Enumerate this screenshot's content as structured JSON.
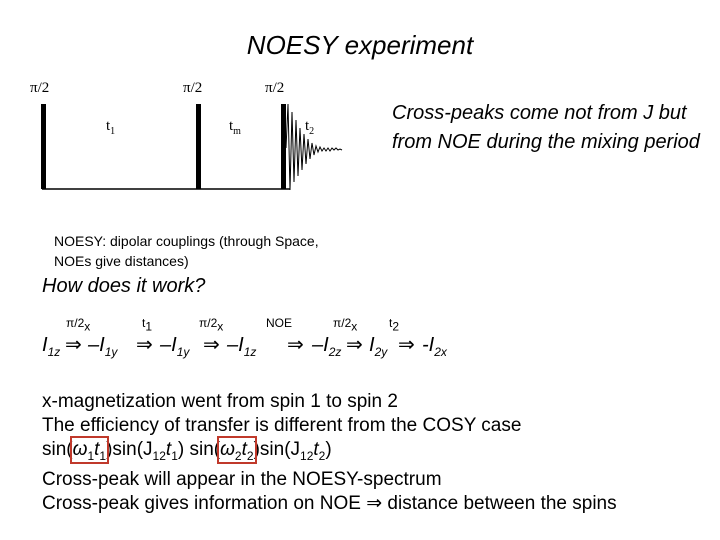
{
  "title": "NOESY experiment",
  "pulse_sequence": {
    "pulses": [
      "π/2",
      "π/2",
      "π/2"
    ],
    "delays": [
      {
        "base": "t",
        "sub": "1"
      },
      {
        "base": "t",
        "sub": "m"
      },
      {
        "base": "t",
        "sub": "2"
      }
    ]
  },
  "note": "Cross-peaks come not from J but from NOE during the mixing period",
  "noesy_description": "NOESY: dipolar couplings (through Space, NOEs give distances)",
  "question": "How does it work?",
  "scheme": {
    "ops": [
      {
        "label": "π/2",
        "sub": "x"
      },
      {
        "label": "t",
        "sub": "1"
      },
      {
        "label": "π/2",
        "sub": "x"
      },
      {
        "label": "NOE",
        "sub": ""
      },
      {
        "label": "π/2",
        "sub": "x"
      },
      {
        "label": "t",
        "sub": "2"
      }
    ],
    "terms": [
      {
        "sign": "",
        "base": "I",
        "sub": "1z"
      },
      {
        "sign": "–",
        "base": "I",
        "sub": "1y"
      },
      {
        "sign": "–",
        "base": "I",
        "sub": "1y"
      },
      {
        "sign": "–",
        "base": "I",
        "sub": "1z"
      },
      {
        "sign": "–",
        "base": "I",
        "sub": "2z"
      },
      {
        "sign": "",
        "base": "I",
        "sub": "2y"
      },
      {
        "sign": "-",
        "base": "I",
        "sub": "2x"
      }
    ]
  },
  "lines": {
    "line1": "x-magnetization went from spin 1 to spin 2",
    "line2": "The efficiency of transfer is different from the COSY case",
    "line3": {
      "a": "sin(",
      "b_base": "ω",
      "b_sub": "1",
      "b_t": "t",
      "b_tsub": "1",
      "c": ")sin(J",
      "c_sub": "12",
      "c_t": "t",
      "c_tsub": "1",
      "d": ") sin(",
      "e_base": "ω",
      "e_sub": "2",
      "e_t": "t",
      "e_tsub": "2",
      "f": ")sin(J",
      "f_sub": "12",
      "f_t": "t",
      "f_tsub": "2",
      "g": ")"
    },
    "line4": "Cross-peak will appear in the NOESY-spectrum",
    "line5a": "Cross-peak gives information on NOE",
    "line5b": "distance between the spins"
  },
  "colors": {
    "highlight": "#c0392b"
  }
}
